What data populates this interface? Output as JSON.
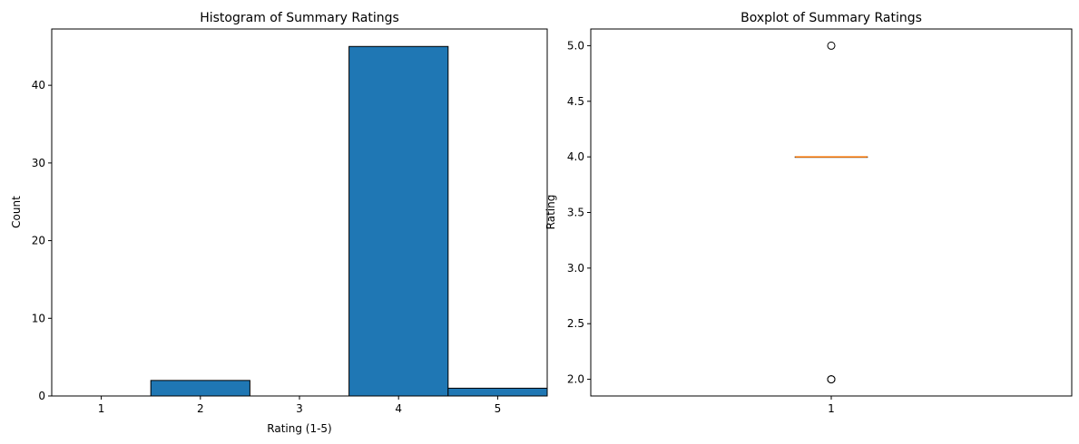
{
  "chart_data": [
    {
      "type": "bar",
      "title": "Histogram of Summary Ratings",
      "xlabel": "Rating (1-5)",
      "ylabel": "Count",
      "categories": [
        "1",
        "2",
        "3",
        "4",
        "5"
      ],
      "values": [
        0,
        2,
        0,
        45,
        1
      ],
      "xlim": [
        0.5,
        5.5
      ],
      "ylim": [
        0,
        47.25
      ],
      "xticks": [
        1,
        2,
        3,
        4,
        5
      ],
      "yticks": [
        0,
        10,
        20,
        30,
        40
      ],
      "bar_color": "#1f77b4",
      "edge_color": "#000000",
      "grid": false
    },
    {
      "type": "box",
      "title": "Boxplot of Summary Ratings",
      "xlabel": "",
      "ylabel": "Rating",
      "categories": [
        "1"
      ],
      "box": {
        "median": 4.0,
        "q1": 4.0,
        "q3": 4.0,
        "whisker_low": 4.0,
        "whisker_high": 4.0
      },
      "outliers": [
        5.0,
        2.0,
        2.0
      ],
      "xlim": [
        0.5,
        1.5
      ],
      "ylim": [
        1.85,
        5.15
      ],
      "yticks": [
        2.0,
        2.5,
        3.0,
        3.5,
        4.0,
        4.5,
        5.0
      ],
      "median_color": "#ff7f0e",
      "grid": false
    }
  ]
}
